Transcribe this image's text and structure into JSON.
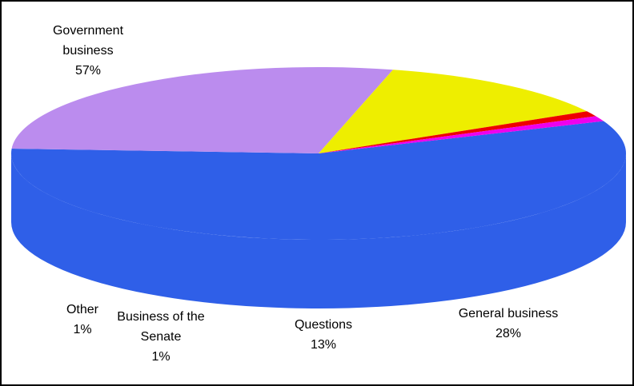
{
  "chart_data": {
    "type": "pie",
    "categories": [
      "Government business",
      "General business",
      "Questions",
      "Business of the Senate",
      "Other"
    ],
    "values": [
      57,
      28,
      13,
      1,
      1
    ],
    "value_labels": [
      "57%",
      "28%",
      "13%",
      "1%",
      "1%"
    ],
    "colors": [
      "#2f5fe8",
      "#bb8cee",
      "#eeee00",
      "#ee0000",
      "#ee00ee"
    ]
  }
}
